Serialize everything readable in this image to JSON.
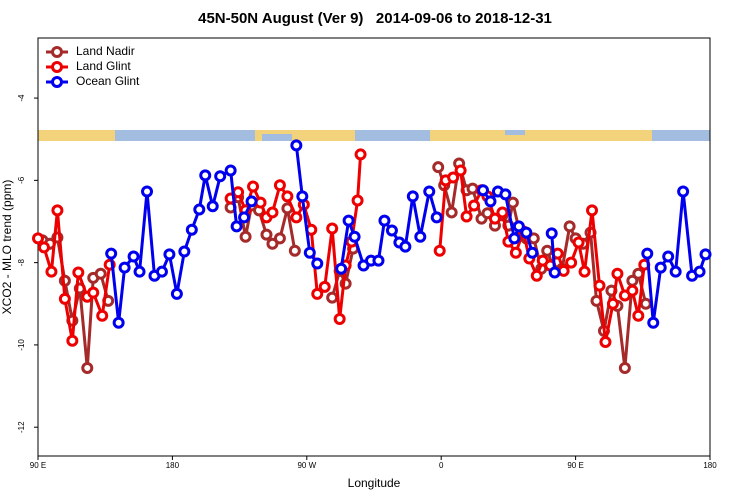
{
  "chart_data": {
    "type": "line",
    "title": "45N-50N August (Ver 9)   2014-09-06 to 2018-12-31",
    "x_label": "Longitude",
    "y_label": "XCO2 - MLO trend (ppm)",
    "xlim": [
      90,
      540
    ],
    "ylim": [
      -12.7,
      -2.54
    ],
    "xticks": [
      {
        "value": 90,
        "label": "90 E"
      },
      {
        "value": 180,
        "label": "180"
      },
      {
        "value": 270,
        "label": "90 W"
      },
      {
        "value": 360,
        "label": "0"
      },
      {
        "value": 450,
        "label": "90 E"
      },
      {
        "value": 540,
        "label": "180"
      }
    ],
    "yticks": [
      -12,
      -10,
      -8,
      -6,
      -4
    ],
    "legend": "top-left",
    "series": [
      {
        "name": "Land Nadir",
        "color": "#a52a2a",
        "x": [
          93,
          98,
          103,
          108,
          113,
          118,
          123,
          127,
          132,
          137,
          null,
          219,
          224,
          229,
          233,
          238,
          243,
          247,
          252,
          257,
          262,
          null,
          287,
          292,
          296,
          301,
          null,
          358,
          362,
          367,
          372,
          377,
          381,
          387,
          391,
          396,
          401,
          405,
          408,
          413,
          417,
          422,
          427,
          431,
          436,
          441,
          446,
          450,
          455,
          460,
          464,
          469,
          474,
          478,
          483,
          488,
          492,
          497
        ],
        "values": [
          -7.46,
          -7.54,
          -7.39,
          -8.44,
          -9.41,
          -8.63,
          -10.56,
          -8.37,
          -8.27,
          -8.93,
          null,
          -6.66,
          -6.41,
          -7.37,
          -6.61,
          -6.73,
          -7.32,
          -7.54,
          -7.41,
          -6.68,
          -7.71,
          null,
          -8.85,
          -8.2,
          -8.51,
          -7.66,
          null,
          -5.68,
          -6.12,
          -6.78,
          -5.59,
          -6.24,
          -6.2,
          -6.93,
          -6.8,
          -7.1,
          -6.85,
          -7.1,
          -6.54,
          -7.34,
          -7.41,
          -7.41,
          -8.15,
          -7.71,
          -8.2,
          -8.15,
          -7.12,
          -7.41,
          -7.54,
          -7.27,
          -8.93,
          -9.66,
          -8.68,
          -9.05,
          -10.56,
          -8.44,
          -8.27,
          -9.0
        ]
      },
      {
        "name": "Land Glint",
        "color": "#ee0000",
        "x": [
          90,
          94,
          99,
          103,
          108,
          113,
          117,
          123,
          127,
          133,
          138,
          null,
          219,
          224,
          229,
          234,
          239,
          243,
          247,
          252,
          257,
          263,
          268,
          273,
          277,
          282,
          287,
          292,
          296,
          300,
          304,
          306,
          null,
          359,
          363,
          368,
          373,
          377,
          382,
          387,
          391,
          396,
          401,
          405,
          410,
          415,
          419,
          424,
          428,
          433,
          438,
          442,
          447,
          452,
          456,
          461,
          466,
          470,
          475,
          478,
          483,
          488,
          492,
          496
        ],
        "values": [
          -7.41,
          -7.63,
          -8.22,
          -6.73,
          -8.88,
          -9.9,
          -8.24,
          -8.83,
          -8.73,
          -9.29,
          -8.05,
          null,
          -6.44,
          -6.29,
          -6.73,
          -6.15,
          -6.54,
          -6.9,
          -6.78,
          -6.12,
          -6.39,
          -6.9,
          -6.59,
          -7.2,
          -8.76,
          -8.59,
          -7.17,
          -9.37,
          -8.07,
          -7.49,
          -6.49,
          -5.37,
          null,
          -7.71,
          -6.0,
          -5.93,
          -5.76,
          -6.88,
          -6.61,
          -6.24,
          -6.39,
          -6.93,
          -6.78,
          -7.49,
          -7.76,
          -7.24,
          -7.9,
          -8.32,
          -7.95,
          -8.07,
          -7.78,
          -8.2,
          -8.0,
          -7.51,
          -8.22,
          -6.73,
          -8.56,
          -9.93,
          -9.0,
          -8.27,
          -8.8,
          -8.68,
          -9.29,
          -8.05
        ]
      },
      {
        "name": "Ocean Glint",
        "color": "#0000ee",
        "x": [
          139,
          144,
          148,
          154,
          158,
          163,
          168,
          173,
          178,
          183,
          188,
          193,
          198,
          202,
          207,
          212,
          219,
          223,
          228,
          233,
          null,
          263,
          267,
          272,
          277,
          null,
          293,
          298,
          302,
          308,
          313,
          318,
          322,
          327,
          332,
          336,
          341,
          346,
          352,
          357,
          null,
          388,
          393,
          398,
          403,
          409,
          412,
          417,
          421,
          null,
          434,
          436,
          null,
          498,
          502,
          507,
          512,
          517,
          522,
          528,
          533,
          537
        ],
        "values": [
          -7.78,
          -9.46,
          -8.12,
          -7.85,
          -8.22,
          -6.27,
          -8.32,
          -8.22,
          -7.8,
          -8.76,
          -7.73,
          -7.2,
          -6.71,
          -5.88,
          -6.63,
          -5.9,
          -5.76,
          -7.12,
          -6.9,
          -6.51,
          null,
          -5.15,
          -6.39,
          -7.76,
          -8.02,
          null,
          -8.15,
          -6.98,
          -7.37,
          -8.07,
          -7.95,
          -7.95,
          -6.98,
          -7.22,
          -7.51,
          -7.61,
          -6.39,
          -7.37,
          -6.27,
          -6.9,
          null,
          -6.24,
          -6.51,
          -6.27,
          -6.34,
          -7.41,
          -7.12,
          -7.27,
          -7.76,
          null,
          -7.29,
          -8.24,
          null,
          -7.78,
          -9.46,
          -8.12,
          -7.85,
          -8.22,
          -6.27,
          -8.32,
          -8.22,
          -7.8
        ]
      }
    ]
  }
}
